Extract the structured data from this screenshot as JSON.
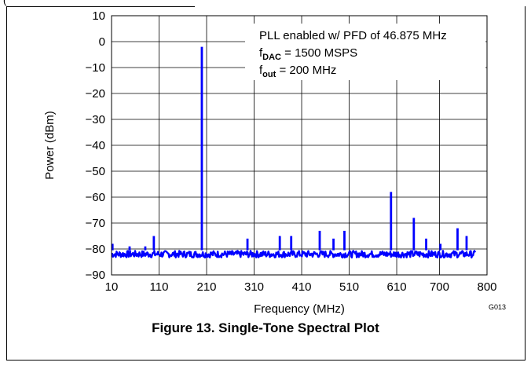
{
  "figure": {
    "caption": "Figure 13. Single-Tone Spectral Plot",
    "code": "G013",
    "paren": "("
  },
  "chart_data": {
    "type": "line",
    "title": "",
    "xlabel": "Frequency (MHz)",
    "ylabel": "Power (dBm)",
    "xlim": [
      10,
      800
    ],
    "ylim": [
      -90,
      10
    ],
    "xticks": [
      10,
      110,
      210,
      310,
      410,
      510,
      610,
      700,
      800
    ],
    "yticks": [
      10,
      0,
      -10,
      -20,
      -30,
      -40,
      -50,
      -60,
      -70,
      -80,
      -90
    ],
    "x_tick_labels": [
      "10",
      "110",
      "210",
      "310",
      "410",
      "510",
      "610",
      "700",
      "800"
    ],
    "y_tick_labels": [
      "10",
      "0",
      "−10",
      "−20",
      "−30",
      "−40",
      "−50",
      "−60",
      "−70",
      "−80",
      "−90"
    ],
    "grid": true,
    "line_color": "#0000ff",
    "noise_floor_dbm": -82,
    "x_end": 775,
    "annotation": {
      "line1": "PLL enabled w/ PFD of 46.875 MHz",
      "line2_main": "f",
      "line2_sub": "DAC",
      "line2_rest": " = 1500 MSPS",
      "line3_main": "f",
      "line3_sub": "out",
      "line3_rest": " = 200 MHz"
    },
    "peaks": [
      {
        "x": 12,
        "y": -78
      },
      {
        "x": 48,
        "y": -79
      },
      {
        "x": 81,
        "y": -79
      },
      {
        "x": 99,
        "y": -75
      },
      {
        "x": 200,
        "y": -2
      },
      {
        "x": 296,
        "y": -76
      },
      {
        "x": 364,
        "y": -75
      },
      {
        "x": 388,
        "y": -75
      },
      {
        "x": 448,
        "y": -73
      },
      {
        "x": 477,
        "y": -76
      },
      {
        "x": 500,
        "y": -73
      },
      {
        "x": 598,
        "y": -58
      },
      {
        "x": 646,
        "y": -68
      },
      {
        "x": 672,
        "y": -76
      },
      {
        "x": 702,
        "y": -78
      },
      {
        "x": 738,
        "y": -72
      },
      {
        "x": 757,
        "y": -75
      }
    ]
  }
}
